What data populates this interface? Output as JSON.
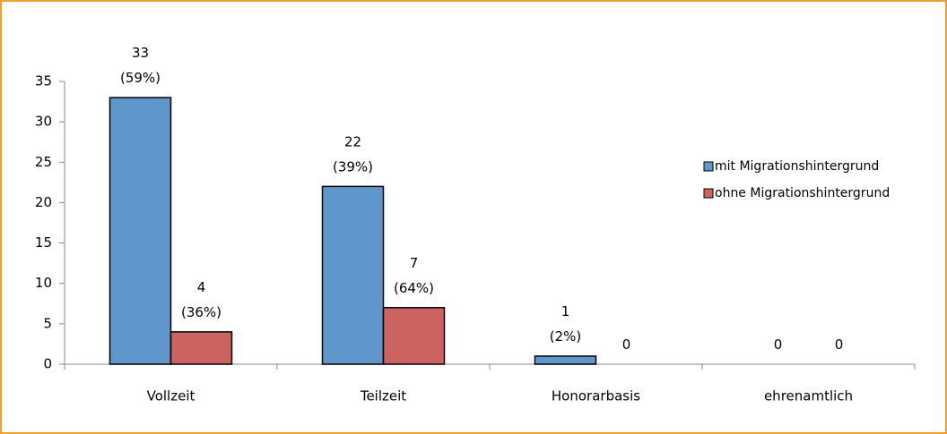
{
  "chart_data": {
    "type": "bar",
    "categories": [
      "Vollzeit",
      "Teilzeit",
      "Honorarbasis",
      "ehrenamtlich"
    ],
    "series": [
      {
        "name": "mit Migrationshintergrund",
        "color": "#5f96cb",
        "values": [
          33,
          22,
          1,
          0
        ],
        "value_labels": [
          [
            "33",
            "(59%)"
          ],
          [
            "22",
            "(39%)"
          ],
          [
            "1",
            "(2%)"
          ],
          [
            "0"
          ]
        ]
      },
      {
        "name": "ohne Migrationshintergrund",
        "color": "#cc6360",
        "values": [
          4,
          7,
          0,
          0
        ],
        "value_labels": [
          [
            "4",
            "(36%)"
          ],
          [
            "7",
            "(64%)"
          ],
          [
            "0"
          ],
          [
            "0"
          ]
        ]
      }
    ],
    "ylim": [
      0,
      35
    ],
    "yticks": [
      0,
      5,
      10,
      15,
      20,
      25,
      30,
      35
    ],
    "grid": false,
    "legend": "right"
  }
}
